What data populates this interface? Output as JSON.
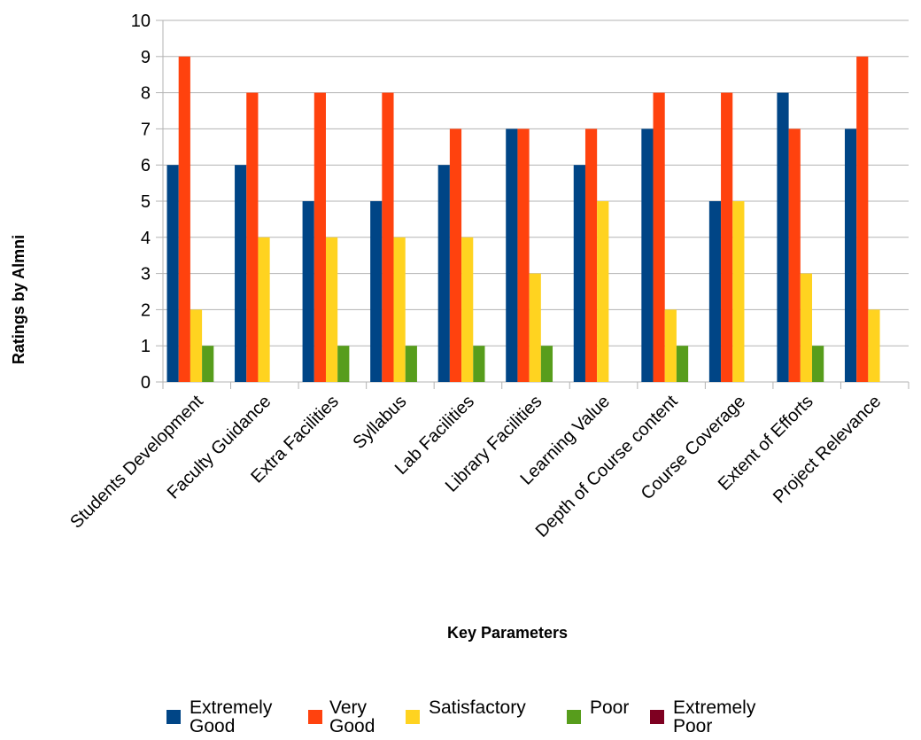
{
  "chart_data": {
    "type": "bar",
    "title": "",
    "xlabel": "Key Parameters",
    "ylabel": "Ratings by Almni",
    "ylim": [
      0,
      10
    ],
    "yticks": [
      0,
      1,
      2,
      3,
      4,
      5,
      6,
      7,
      8,
      9,
      10
    ],
    "grid": true,
    "legend_position": "bottom",
    "categories": [
      "Students Development",
      "Faculty Guidance",
      "Extra Facilities",
      "Syllabus",
      "Lab Facilities",
      "Library Facilities",
      "Learning Value",
      "Depth of Course content",
      "Course Coverage",
      "Extent of Efforts",
      "Project Relevance"
    ],
    "series": [
      {
        "name": "Extremely Good",
        "legend_lines": [
          "Extremely",
          " Good"
        ],
        "color": "#004586",
        "values": [
          6,
          6,
          5,
          5,
          6,
          7,
          6,
          7,
          5,
          8,
          7
        ]
      },
      {
        "name": "Very Good",
        "legend_lines": [
          "Very",
          " Good"
        ],
        "color": "#ff420e",
        "values": [
          9,
          8,
          8,
          8,
          7,
          7,
          7,
          8,
          8,
          7,
          9
        ]
      },
      {
        "name": "Satisfactory",
        "legend_lines": [
          "Satisfactory"
        ],
        "color": "#ffd320",
        "values": [
          2,
          4,
          4,
          4,
          4,
          3,
          5,
          2,
          5,
          3,
          2
        ]
      },
      {
        "name": "Poor",
        "legend_lines": [
          "Poor"
        ],
        "color": "#579d1c",
        "values": [
          1,
          0,
          1,
          1,
          1,
          1,
          0,
          1,
          0,
          1,
          0
        ]
      },
      {
        "name": "Extremely Poor",
        "legend_lines": [
          "Extremely",
          "Poor"
        ],
        "color": "#7e0021",
        "values": [
          0,
          0,
          0,
          0,
          0,
          0,
          0,
          0,
          0,
          0,
          0
        ]
      }
    ]
  }
}
